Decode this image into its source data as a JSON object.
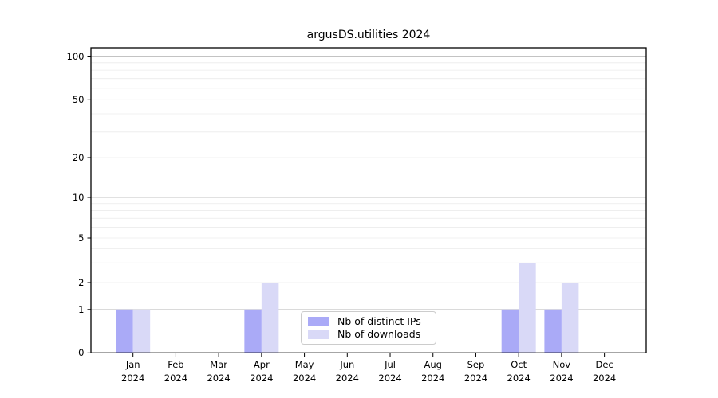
{
  "figure": {
    "title": "argusDS.utilities 2024"
  },
  "chart_data": {
    "type": "bar",
    "title": "argusDS.utilities 2024",
    "categories": [
      "Jan 2024",
      "Feb 2024",
      "Mar 2024",
      "Apr 2024",
      "May 2024",
      "Jun 2024",
      "Jul 2024",
      "Aug 2024",
      "Sep 2024",
      "Oct 2024",
      "Nov 2024",
      "Dec 2024"
    ],
    "series": [
      {
        "name": "Nb of distinct IPs",
        "color": "#aaaaf7",
        "values": [
          1,
          0,
          0,
          1,
          0,
          0,
          0,
          0,
          0,
          1,
          1,
          0
        ]
      },
      {
        "name": "Nb of downloads",
        "color": "#d9d9f7",
        "values": [
          1,
          0,
          0,
          2,
          0,
          0,
          0,
          0,
          0,
          3,
          2,
          0
        ]
      }
    ],
    "xlabel": "",
    "ylabel": "",
    "yscale": "symlog",
    "yticks": [
      0,
      1,
      2,
      5,
      10,
      20,
      50,
      100
    ],
    "ylim": [
      0,
      115
    ],
    "grid": "on",
    "legend_position": "lower center inside plot"
  },
  "legend": {
    "items": [
      {
        "label": "Nb of distinct IPs",
        "color": "#aaaaf7"
      },
      {
        "label": "Nb of downloads",
        "color": "#d9d9f7"
      }
    ]
  },
  "colors": {
    "bar_distinct_ips": "#aaaaf7",
    "bar_downloads": "#d9d9f7",
    "major_grid": "#c3c3c3",
    "minor_grid": "#ebebeb",
    "axis": "#000000",
    "legend_border": "#cccccc",
    "background": "#ffffff"
  }
}
